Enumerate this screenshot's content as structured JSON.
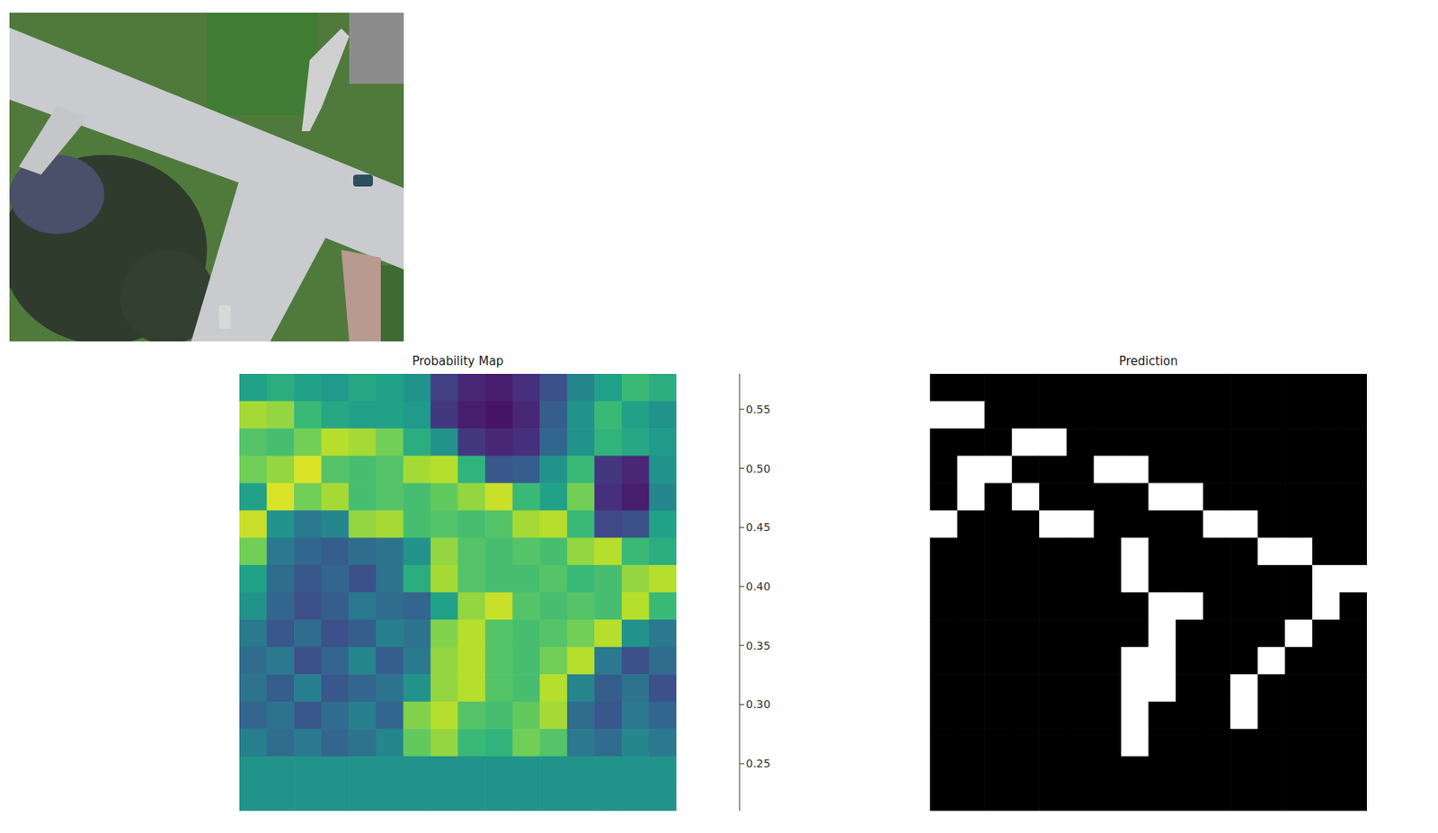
{
  "chart_data": [
    {
      "type": "image"
    },
    {
      "type": "heatmap",
      "title": "Probability Map",
      "tick_labels": false,
      "cells": [
        [
          0.42,
          0.44,
          0.42,
          0.41,
          0.43,
          0.42,
          0.4,
          0.28,
          0.25,
          0.24,
          0.26,
          0.3,
          0.38,
          0.42,
          0.46,
          0.44
        ],
        [
          0.53,
          0.52,
          0.46,
          0.43,
          0.42,
          0.42,
          0.41,
          0.27,
          0.24,
          0.23,
          0.25,
          0.32,
          0.4,
          0.46,
          0.42,
          0.4
        ],
        [
          0.48,
          0.47,
          0.5,
          0.54,
          0.53,
          0.5,
          0.44,
          0.4,
          0.27,
          0.25,
          0.26,
          0.33,
          0.4,
          0.45,
          0.43,
          0.41
        ],
        [
          0.5,
          0.52,
          0.56,
          0.48,
          0.47,
          0.48,
          0.53,
          0.54,
          0.45,
          0.31,
          0.32,
          0.4,
          0.46,
          0.27,
          0.25,
          0.4
        ],
        [
          0.42,
          0.56,
          0.5,
          0.53,
          0.47,
          0.48,
          0.47,
          0.49,
          0.52,
          0.55,
          0.46,
          0.42,
          0.5,
          0.26,
          0.24,
          0.38
        ],
        [
          0.55,
          0.4,
          0.36,
          0.38,
          0.52,
          0.53,
          0.47,
          0.48,
          0.47,
          0.48,
          0.53,
          0.54,
          0.46,
          0.29,
          0.3,
          0.42
        ],
        [
          0.5,
          0.36,
          0.33,
          0.32,
          0.34,
          0.35,
          0.4,
          0.52,
          0.48,
          0.47,
          0.48,
          0.47,
          0.52,
          0.54,
          0.46,
          0.44
        ],
        [
          0.42,
          0.34,
          0.31,
          0.33,
          0.3,
          0.35,
          0.44,
          0.53,
          0.48,
          0.47,
          0.47,
          0.48,
          0.46,
          0.47,
          0.52,
          0.54
        ],
        [
          0.4,
          0.33,
          0.3,
          0.32,
          0.36,
          0.34,
          0.33,
          0.42,
          0.52,
          0.55,
          0.48,
          0.47,
          0.48,
          0.47,
          0.54,
          0.46
        ],
        [
          0.36,
          0.31,
          0.34,
          0.3,
          0.32,
          0.37,
          0.35,
          0.51,
          0.54,
          0.48,
          0.47,
          0.48,
          0.5,
          0.54,
          0.4,
          0.36
        ],
        [
          0.34,
          0.36,
          0.3,
          0.33,
          0.38,
          0.32,
          0.36,
          0.52,
          0.54,
          0.48,
          0.47,
          0.5,
          0.54,
          0.36,
          0.3,
          0.34
        ],
        [
          0.35,
          0.32,
          0.37,
          0.31,
          0.33,
          0.35,
          0.4,
          0.52,
          0.54,
          0.48,
          0.47,
          0.54,
          0.38,
          0.32,
          0.35,
          0.3
        ],
        [
          0.33,
          0.35,
          0.31,
          0.34,
          0.37,
          0.33,
          0.51,
          0.54,
          0.48,
          0.47,
          0.49,
          0.53,
          0.34,
          0.31,
          0.36,
          0.33
        ],
        [
          0.37,
          0.34,
          0.36,
          0.33,
          0.35,
          0.38,
          0.49,
          0.52,
          0.46,
          0.45,
          0.5,
          0.48,
          0.36,
          0.34,
          0.38,
          0.36
        ],
        [
          0.4,
          0.4,
          0.4,
          0.4,
          0.4,
          0.4,
          0.4,
          0.4,
          0.4,
          0.4,
          0.4,
          0.4,
          0.4,
          0.4,
          0.4,
          0.4
        ],
        [
          0.4,
          0.4,
          0.4,
          0.4,
          0.4,
          0.4,
          0.4,
          0.4,
          0.4,
          0.4,
          0.4,
          0.4,
          0.4,
          0.4,
          0.4,
          0.4
        ]
      ],
      "colorbar": {
        "range": [
          0.21,
          0.58
        ],
        "ticks": [
          0.25,
          {
            "value": 0.3,
            "label": "0.30"
          },
          0.35,
          {
            "value": 0.4,
            "label": "0.40"
          },
          0.45,
          {
            "value": 0.5,
            "label": "0.50"
          },
          0.55
        ]
      }
    },
    {
      "type": "heatmap",
      "title": "Prediction",
      "tick_labels": false,
      "cells": [
        [
          0,
          0,
          0,
          0,
          0,
          0,
          0,
          0,
          0,
          0,
          0,
          0,
          0,
          0,
          0,
          0
        ],
        [
          1,
          1,
          0,
          0,
          0,
          0,
          0,
          0,
          0,
          0,
          0,
          0,
          0,
          0,
          0,
          0
        ],
        [
          0,
          0,
          0,
          1,
          1,
          0,
          0,
          0,
          0,
          0,
          0,
          0,
          0,
          0,
          0,
          0
        ],
        [
          0,
          1,
          1,
          0,
          0,
          0,
          1,
          1,
          0,
          0,
          0,
          0,
          0,
          0,
          0,
          0
        ],
        [
          0,
          1,
          0,
          1,
          0,
          0,
          0,
          0,
          1,
          1,
          0,
          0,
          0,
          0,
          0,
          0
        ],
        [
          1,
          0,
          0,
          0,
          1,
          1,
          0,
          0,
          0,
          0,
          1,
          1,
          0,
          0,
          0,
          0
        ],
        [
          0,
          0,
          0,
          0,
          0,
          0,
          0,
          1,
          0,
          0,
          0,
          0,
          1,
          1,
          0,
          0
        ],
        [
          0,
          0,
          0,
          0,
          0,
          0,
          0,
          1,
          0,
          0,
          0,
          0,
          0,
          0,
          1,
          1
        ],
        [
          0,
          0,
          0,
          0,
          0,
          0,
          0,
          0,
          1,
          1,
          0,
          0,
          0,
          0,
          1,
          0
        ],
        [
          0,
          0,
          0,
          0,
          0,
          0,
          0,
          0,
          1,
          0,
          0,
          0,
          0,
          1,
          0,
          0
        ],
        [
          0,
          0,
          0,
          0,
          0,
          0,
          0,
          1,
          1,
          0,
          0,
          0,
          1,
          0,
          0,
          0
        ],
        [
          0,
          0,
          0,
          0,
          0,
          0,
          0,
          1,
          1,
          0,
          0,
          1,
          0,
          0,
          0,
          0
        ],
        [
          0,
          0,
          0,
          0,
          0,
          0,
          0,
          1,
          0,
          0,
          0,
          1,
          0,
          0,
          0,
          0
        ],
        [
          0,
          0,
          0,
          0,
          0,
          0,
          0,
          1,
          0,
          0,
          0,
          0,
          0,
          0,
          0,
          0
        ],
        [
          0,
          0,
          0,
          0,
          0,
          0,
          0,
          0,
          0,
          0,
          0,
          0,
          0,
          0,
          0,
          0
        ],
        [
          0,
          0,
          0,
          0,
          0,
          0,
          0,
          0,
          0,
          0,
          0,
          0,
          0,
          0,
          0,
          0
        ]
      ]
    }
  ]
}
